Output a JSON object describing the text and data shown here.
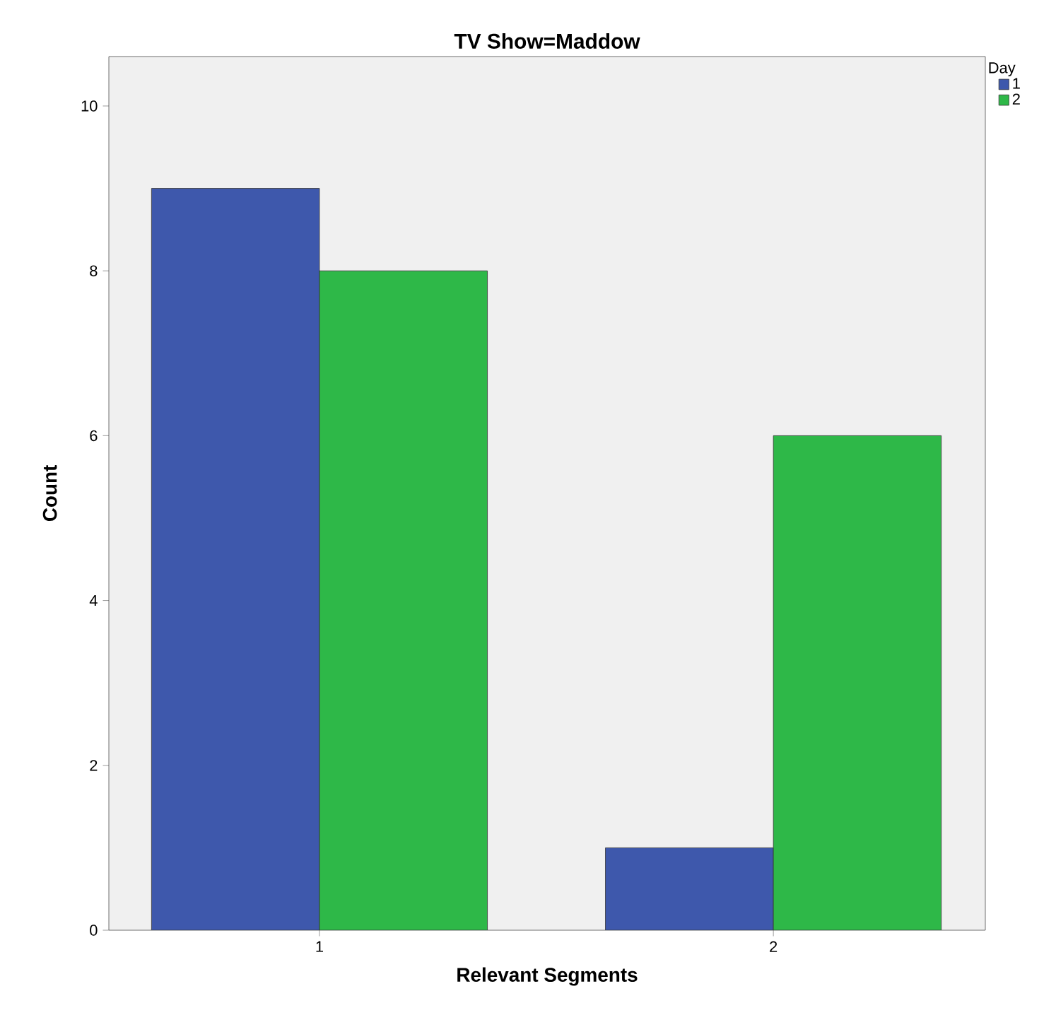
{
  "chart_data": {
    "type": "bar",
    "title": "TV Show=Maddow",
    "xlabel": "Relevant Segments",
    "ylabel": "Count",
    "legend_title": "Day",
    "categories": [
      "1",
      "2"
    ],
    "series": [
      {
        "name": "1",
        "color": "#3e58ac",
        "values": [
          9,
          1
        ]
      },
      {
        "name": "2",
        "color": "#2eb848",
        "values": [
          8,
          6
        ]
      }
    ],
    "ylim": [
      0,
      10.6
    ],
    "yticks": [
      0,
      2,
      4,
      6,
      8,
      10
    ],
    "grid": false,
    "legend": "top right"
  }
}
